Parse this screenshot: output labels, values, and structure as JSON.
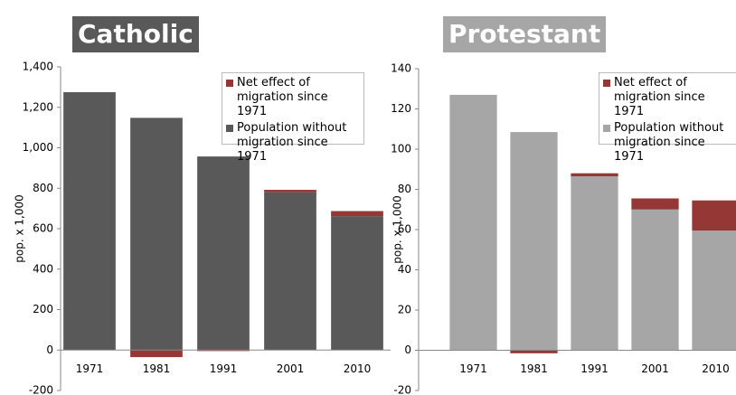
{
  "chart_data": [
    {
      "type": "bar",
      "stacked": true,
      "title": "Catholic",
      "title_color": "#595959",
      "ylabel": "pop. x 1,000",
      "categories": [
        "1971",
        "1981",
        "1991",
        "2001",
        "2010"
      ],
      "series": [
        {
          "name": "Net effect of migration since 1971",
          "color": "#953735",
          "values": [
            0,
            -35,
            -5,
            12,
            25
          ]
        },
        {
          "name": "Population without migration since 1971",
          "color": "#595959",
          "values": [
            1275,
            1148,
            957,
            780,
            662
          ]
        }
      ],
      "ylim": [
        -200,
        1400
      ],
      "yticks": [
        -200,
        0,
        200,
        400,
        600,
        800,
        {
          "value": 1000,
          "label": "1,000"
        },
        {
          "value": 1200,
          "label": "1,200"
        },
        {
          "value": 1400,
          "label": "1,400"
        }
      ],
      "legend": "upper right"
    },
    {
      "type": "bar",
      "stacked": true,
      "title": "Protestant",
      "title_color": "#a6a6a6",
      "ylabel": "pop. x 1,000",
      "categories": [
        "1971",
        "1981",
        "1991",
        "2001",
        "2010"
      ],
      "series": [
        {
          "name": "Net effect of migration since 1971",
          "color": "#953735",
          "values": [
            0,
            -1.5,
            1.5,
            5.5,
            15
          ]
        },
        {
          "name": "Population without migration since 1971",
          "color": "#a6a6a6",
          "values": [
            127,
            108.5,
            86.5,
            70,
            59.5
          ]
        }
      ],
      "ylim": [
        -20,
        140
      ],
      "yticks": [
        -20,
        0,
        20,
        40,
        60,
        80,
        100,
        120,
        140
      ],
      "legend": "upper right"
    }
  ]
}
